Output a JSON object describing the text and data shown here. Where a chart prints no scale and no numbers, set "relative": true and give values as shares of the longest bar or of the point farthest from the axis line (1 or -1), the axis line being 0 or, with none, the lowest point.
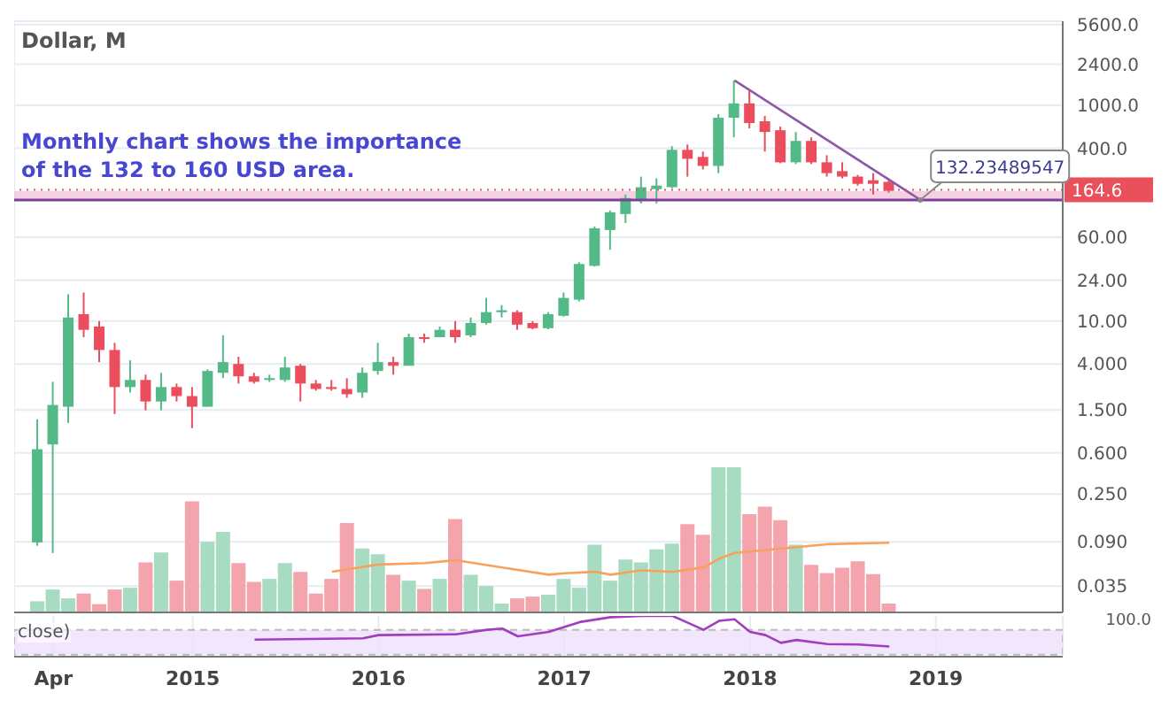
{
  "chart_data": [
    {
      "type": "candlestick",
      "title": "Dollar, M",
      "log": true,
      "grid": true,
      "tick_labels": "y",
      "annotations": [
        "Monthly chart shows the importance of the 132 to 160 USD area.",
        {
          "text": "132.23489547",
          "x": "2018-12",
          "y": 132.23489547
        }
      ],
      "x": [
        "2014-03",
        "2014-04",
        "2014-05",
        "2014-06",
        "2014-07",
        "2014-08",
        "2014-09",
        "2014-10",
        "2014-11",
        "2014-12",
        "2015-01",
        "2015-02",
        "2015-03",
        "2015-04",
        "2015-05",
        "2015-06",
        "2015-07",
        "2015-08",
        "2015-09",
        "2015-10",
        "2015-11",
        "2015-12",
        "2016-01",
        "2016-02",
        "2016-03",
        "2016-04",
        "2016-05",
        "2016-06",
        "2016-07",
        "2016-08",
        "2016-09",
        "2016-10",
        "2016-11",
        "2016-12",
        "2017-01",
        "2017-02",
        "2017-03",
        "2017-04",
        "2017-05",
        "2017-06",
        "2017-07",
        "2017-08",
        "2017-09",
        "2017-10",
        "2017-11",
        "2017-12",
        "2018-01",
        "2018-02",
        "2018-03",
        "2018-04",
        "2018-05",
        "2018-06",
        "2018-07",
        "2018-08",
        "2018-09",
        "2018-10"
      ],
      "ohlc": [
        [
          0.089,
          1.23,
          0.083,
          0.65
        ],
        [
          0.72,
          2.74,
          0.071,
          1.67
        ],
        [
          1.61,
          17.7,
          1.14,
          10.8
        ],
        [
          11.6,
          18.4,
          7.1,
          8.3
        ],
        [
          8.9,
          10,
          4.17,
          5.4
        ],
        [
          5.4,
          6.3,
          1.38,
          2.45
        ],
        [
          2.45,
          4.33,
          2.18,
          2.85
        ],
        [
          2.85,
          3.19,
          1.49,
          1.8
        ],
        [
          1.8,
          3.32,
          1.49,
          2.45
        ],
        [
          2.45,
          2.64,
          1.8,
          2.02
        ],
        [
          2.02,
          2.45,
          1.02,
          1.61
        ],
        [
          1.61,
          3.58,
          1.61,
          3.45
        ],
        [
          3.32,
          7.4,
          2.96,
          4.17
        ],
        [
          4.01,
          4.67,
          2.64,
          3.08
        ],
        [
          3.08,
          3.32,
          2.64,
          2.74
        ],
        [
          2.85,
          3.19,
          2.74,
          2.96
        ],
        [
          2.85,
          4.67,
          2.74,
          3.72
        ],
        [
          3.86,
          4.01,
          1.8,
          2.64
        ],
        [
          2.64,
          2.85,
          2.27,
          2.35
        ],
        [
          2.45,
          2.85,
          2.27,
          2.35
        ],
        [
          2.35,
          2.96,
          1.95,
          2.1
        ],
        [
          2.18,
          3.72,
          1.95,
          3.32
        ],
        [
          3.45,
          6.3,
          3.19,
          4.17
        ],
        [
          4.17,
          4.67,
          3.19,
          3.86
        ],
        [
          3.86,
          7.66,
          3.86,
          7.1
        ],
        [
          7.1,
          7.66,
          6.3,
          6.84
        ],
        [
          7.1,
          8.9,
          7.1,
          8.3
        ],
        [
          8.3,
          10,
          6.3,
          7.1
        ],
        [
          7.38,
          10.8,
          7.1,
          9.6
        ],
        [
          9.6,
          16.4,
          9.27,
          12.1
        ],
        [
          12.1,
          14.1,
          10.8,
          12.6
        ],
        [
          12.1,
          12.6,
          8.3,
          9.27
        ],
        [
          9.6,
          10,
          8.4,
          8.6
        ],
        [
          8.6,
          12.1,
          8.4,
          11.6
        ],
        [
          11.2,
          18.4,
          11,
          16.4
        ],
        [
          15.8,
          35.1,
          15.2,
          33.8
        ],
        [
          32.5,
          75.1,
          32,
          72.4
        ],
        [
          69.8,
          105.9,
          45.8,
          101.9
        ],
        [
          98.2,
          149,
          81,
          138
        ],
        [
          133,
          218,
          123,
          174
        ],
        [
          167,
          210,
          123,
          180
        ],
        [
          174,
          417,
          170,
          386
        ],
        [
          386,
          433,
          218,
          319
        ],
        [
          332,
          372,
          254,
          274
        ],
        [
          274,
          826,
          235,
          766
        ],
        [
          766,
          1700,
          504,
          1040
        ],
        [
          1040,
          1356,
          610,
          684
        ],
        [
          710,
          796,
          372,
          565
        ],
        [
          587,
          634,
          290,
          296
        ],
        [
          296,
          565,
          285,
          467
        ],
        [
          467,
          504,
          285,
          296
        ],
        [
          296,
          344,
          218,
          235
        ],
        [
          245,
          296,
          210,
          218
        ],
        [
          218,
          226,
          180,
          187
        ],
        [
          202,
          235,
          149,
          187
        ],
        [
          195,
          210,
          155,
          161
        ]
      ],
      "colors": [
        "#53b987",
        "#53b987",
        "#53b987",
        "#eb4d5c",
        "#eb4d5c",
        "#eb4d5c",
        "#53b987",
        "#eb4d5c",
        "#53b987",
        "#eb4d5c",
        "#eb4d5c",
        "#53b987",
        "#53b987",
        "#eb4d5c",
        "#eb4d5c",
        "#53b987",
        "#53b987",
        "#eb4d5c",
        "#eb4d5c",
        "#eb4d5c",
        "#eb4d5c",
        "#53b987",
        "#53b987",
        "#eb4d5c",
        "#53b987",
        "#eb4d5c",
        "#53b987",
        "#eb4d5c",
        "#53b987",
        "#53b987",
        "#53b987",
        "#eb4d5c",
        "#eb4d5c",
        "#53b987",
        "#53b987",
        "#53b987",
        "#53b987",
        "#53b987",
        "#53b987",
        "#53b987",
        "#53b987",
        "#53b987",
        "#eb4d5c",
        "#eb4d5c",
        "#53b987",
        "#53b987",
        "#eb4d5c",
        "#eb4d5c",
        "#eb4d5c",
        "#53b987",
        "#eb4d5c",
        "#eb4d5c",
        "#eb4d5c",
        "#eb4d5c",
        "#eb4d5c",
        "#eb4d5c"
      ],
      "series": [
        {
          "type": "line",
          "color": "#8e5aa8",
          "x": [
            "2017-12",
            "2018-12"
          ],
          "values": [
            1700,
            133
          ]
        }
      ],
      "xlim": [
        "2014-01-15",
        "2019-09-07"
      ],
      "xticks": [
        "2014-04",
        "2015-01",
        "2016-01",
        "2017-01",
        "2018-01",
        "2019-01"
      ],
      "ylim": [
        0.02,
        6000
      ],
      "yticks": [
        {
          "value": 0.035,
          "label": "0.035"
        },
        {
          "value": 0.09,
          "label": "0.090"
        },
        {
          "value": 0.25,
          "label": "0.250"
        },
        {
          "value": 0.6,
          "label": "0.600"
        },
        {
          "value": 1.5,
          "label": "1.500"
        },
        {
          "value": 4,
          "label": "4.000"
        },
        {
          "value": 10,
          "label": "10.00"
        },
        {
          "value": 24,
          "label": "24.00"
        },
        {
          "value": 60,
          "label": "60.00"
        },
        {
          "value": 400,
          "label": "400.0"
        },
        {
          "value": 1000,
          "label": "1000.0"
        },
        {
          "value": 2400,
          "label": "2400.0"
        },
        {
          "value": 5600,
          "label": "5600.0"
        }
      ],
      "ref_lines": [
        {
          "axis": "y",
          "value": 164.6,
          "label": "164.6",
          "color": "#e8505b",
          "line_style": "dotted"
        },
        {
          "axis": "y",
          "value": 132.23489547,
          "color": "#7e3f9a",
          "line_style": "solid"
        }
      ],
      "bands": [
        {
          "axis": "y",
          "from": 132.23489547,
          "to": 160,
          "color": "#f2c4dc"
        }
      ]
    },
    {
      "type": "bar",
      "relative": true,
      "tick_labels": false,
      "x": [
        "2014-03",
        "2014-04",
        "2014-05",
        "2014-06",
        "2014-07",
        "2014-08",
        "2014-09",
        "2014-10",
        "2014-11",
        "2014-12",
        "2015-01",
        "2015-02",
        "2015-03",
        "2015-04",
        "2015-05",
        "2015-06",
        "2015-07",
        "2015-08",
        "2015-09",
        "2015-10",
        "2015-11",
        "2015-12",
        "2016-01",
        "2016-02",
        "2016-03",
        "2016-04",
        "2016-05",
        "2016-06",
        "2016-07",
        "2016-08",
        "2016-09",
        "2016-10",
        "2016-11",
        "2016-12",
        "2017-01",
        "2017-02",
        "2017-03",
        "2017-04",
        "2017-05",
        "2017-06",
        "2017-07",
        "2017-08",
        "2017-09",
        "2017-10",
        "2017-11",
        "2017-12",
        "2018-01",
        "2018-02",
        "2018-03",
        "2018-04",
        "2018-05",
        "2018-06",
        "2018-07",
        "2018-08",
        "2018-09",
        "2018-10"
      ],
      "xlim": [
        "2014-01-15",
        "2019-09-07"
      ],
      "series": [
        {
          "type": "bar",
          "values": [
            0.077,
            0.158,
            0.097,
            0.13,
            0.057,
            0.158,
            0.17,
            0.344,
            0.413,
            0.219,
            0.766,
            0.486,
            0.555,
            0.34,
            0.21,
            0.231,
            0.34,
            0.279,
            0.13,
            0.231,
            0.616,
            0.441,
            0.401,
            0.259,
            0.219,
            0.162,
            0.231,
            0.644,
            0.259,
            0.182,
            0.061,
            0.097,
            0.109,
            0.122,
            0.231,
            0.17,
            0.466,
            0.219,
            0.365,
            0.344,
            0.434,
            0.474,
            0.608,
            0.535,
            1,
            1,
            0.677,
            0.729,
            0.636,
            0.466,
            0.328,
            0.271,
            0.308,
            0.352,
            0.264,
            0.061
          ],
          "colors": [
            "#a8dcc2",
            "#a8dcc2",
            "#a8dcc2",
            "#f4a4ac",
            "#f4a4ac",
            "#f4a4ac",
            "#a8dcc2",
            "#f4a4ac",
            "#a8dcc2",
            "#f4a4ac",
            "#f4a4ac",
            "#a8dcc2",
            "#a8dcc2",
            "#f4a4ac",
            "#f4a4ac",
            "#a8dcc2",
            "#a8dcc2",
            "#f4a4ac",
            "#f4a4ac",
            "#f4a4ac",
            "#f4a4ac",
            "#a8dcc2",
            "#a8dcc2",
            "#f4a4ac",
            "#a8dcc2",
            "#f4a4ac",
            "#a8dcc2",
            "#f4a4ac",
            "#a8dcc2",
            "#a8dcc2",
            "#a8dcc2",
            "#f4a4ac",
            "#f4a4ac",
            "#a8dcc2",
            "#a8dcc2",
            "#a8dcc2",
            "#a8dcc2",
            "#a8dcc2",
            "#a8dcc2",
            "#a8dcc2",
            "#a8dcc2",
            "#a8dcc2",
            "#f4a4ac",
            "#f4a4ac",
            "#a8dcc2",
            "#a8dcc2",
            "#f4a4ac",
            "#f4a4ac",
            "#f4a4ac",
            "#a8dcc2",
            "#f4a4ac",
            "#f4a4ac",
            "#f4a4ac",
            "#f4a4ac",
            "#f4a4ac",
            "#f4a4ac"
          ]
        },
        {
          "type": "line",
          "color": "#f6a25e",
          "x": [
            "2015-10",
            "2016-01",
            "2016-04",
            "2016-06",
            "2016-09",
            "2016-12",
            "2017-01",
            "2017-03",
            "2017-04",
            "2017-06",
            "2017-08",
            "2017-10",
            "2017-11",
            "2017-12",
            "2018-02",
            "2018-04",
            "2018-06",
            "2018-10"
          ],
          "values": [
            0.28,
            0.33,
            0.34,
            0.36,
            0.31,
            0.26,
            0.27,
            0.28,
            0.26,
            0.29,
            0.28,
            0.31,
            0.37,
            0.41,
            0.43,
            0.45,
            0.47,
            0.48
          ]
        }
      ]
    },
    {
      "type": "line",
      "title": "close)",
      "relative": true,
      "tick_labels": "x",
      "grid": "x",
      "color": "#a23dbf",
      "annotations": [
        "100.0"
      ],
      "x": [
        "2015-05",
        "2015-12",
        "2016-01",
        "2016-06",
        "2016-08",
        "2016-09",
        "2016-10",
        "2016-12",
        "2017-02",
        "2017-04",
        "2017-06",
        "2017-08",
        "2017-10",
        "2017-11",
        "2017-12",
        "2018-01",
        "2018-02",
        "2018-03",
        "2018-04",
        "2018-06",
        "2018-08",
        "2018-10"
      ],
      "values": [
        0.42,
        0.45,
        0.53,
        0.55,
        0.66,
        0.69,
        0.5,
        0.61,
        0.85,
        0.97,
        1,
        1,
        0.66,
        0.88,
        0.92,
        0.61,
        0.53,
        0.34,
        0.41,
        0.31,
        0.3,
        0.25
      ],
      "bands": [
        {
          "axis": "y",
          "from": 0.05,
          "to": 0.66,
          "color": "#efe0fb"
        }
      ],
      "xlim": [
        "2014-01-15",
        "2019-09-07"
      ],
      "xticks": [
        {
          "value": "2014-04",
          "label": "Apr"
        },
        {
          "value": "2015-01",
          "label": "2015"
        },
        {
          "value": "2016-01",
          "label": "2016"
        },
        {
          "value": "2017-01",
          "label": "2017"
        },
        {
          "value": "2018-01",
          "label": "2018"
        },
        {
          "value": "2019-01",
          "label": "2019"
        }
      ]
    }
  ]
}
